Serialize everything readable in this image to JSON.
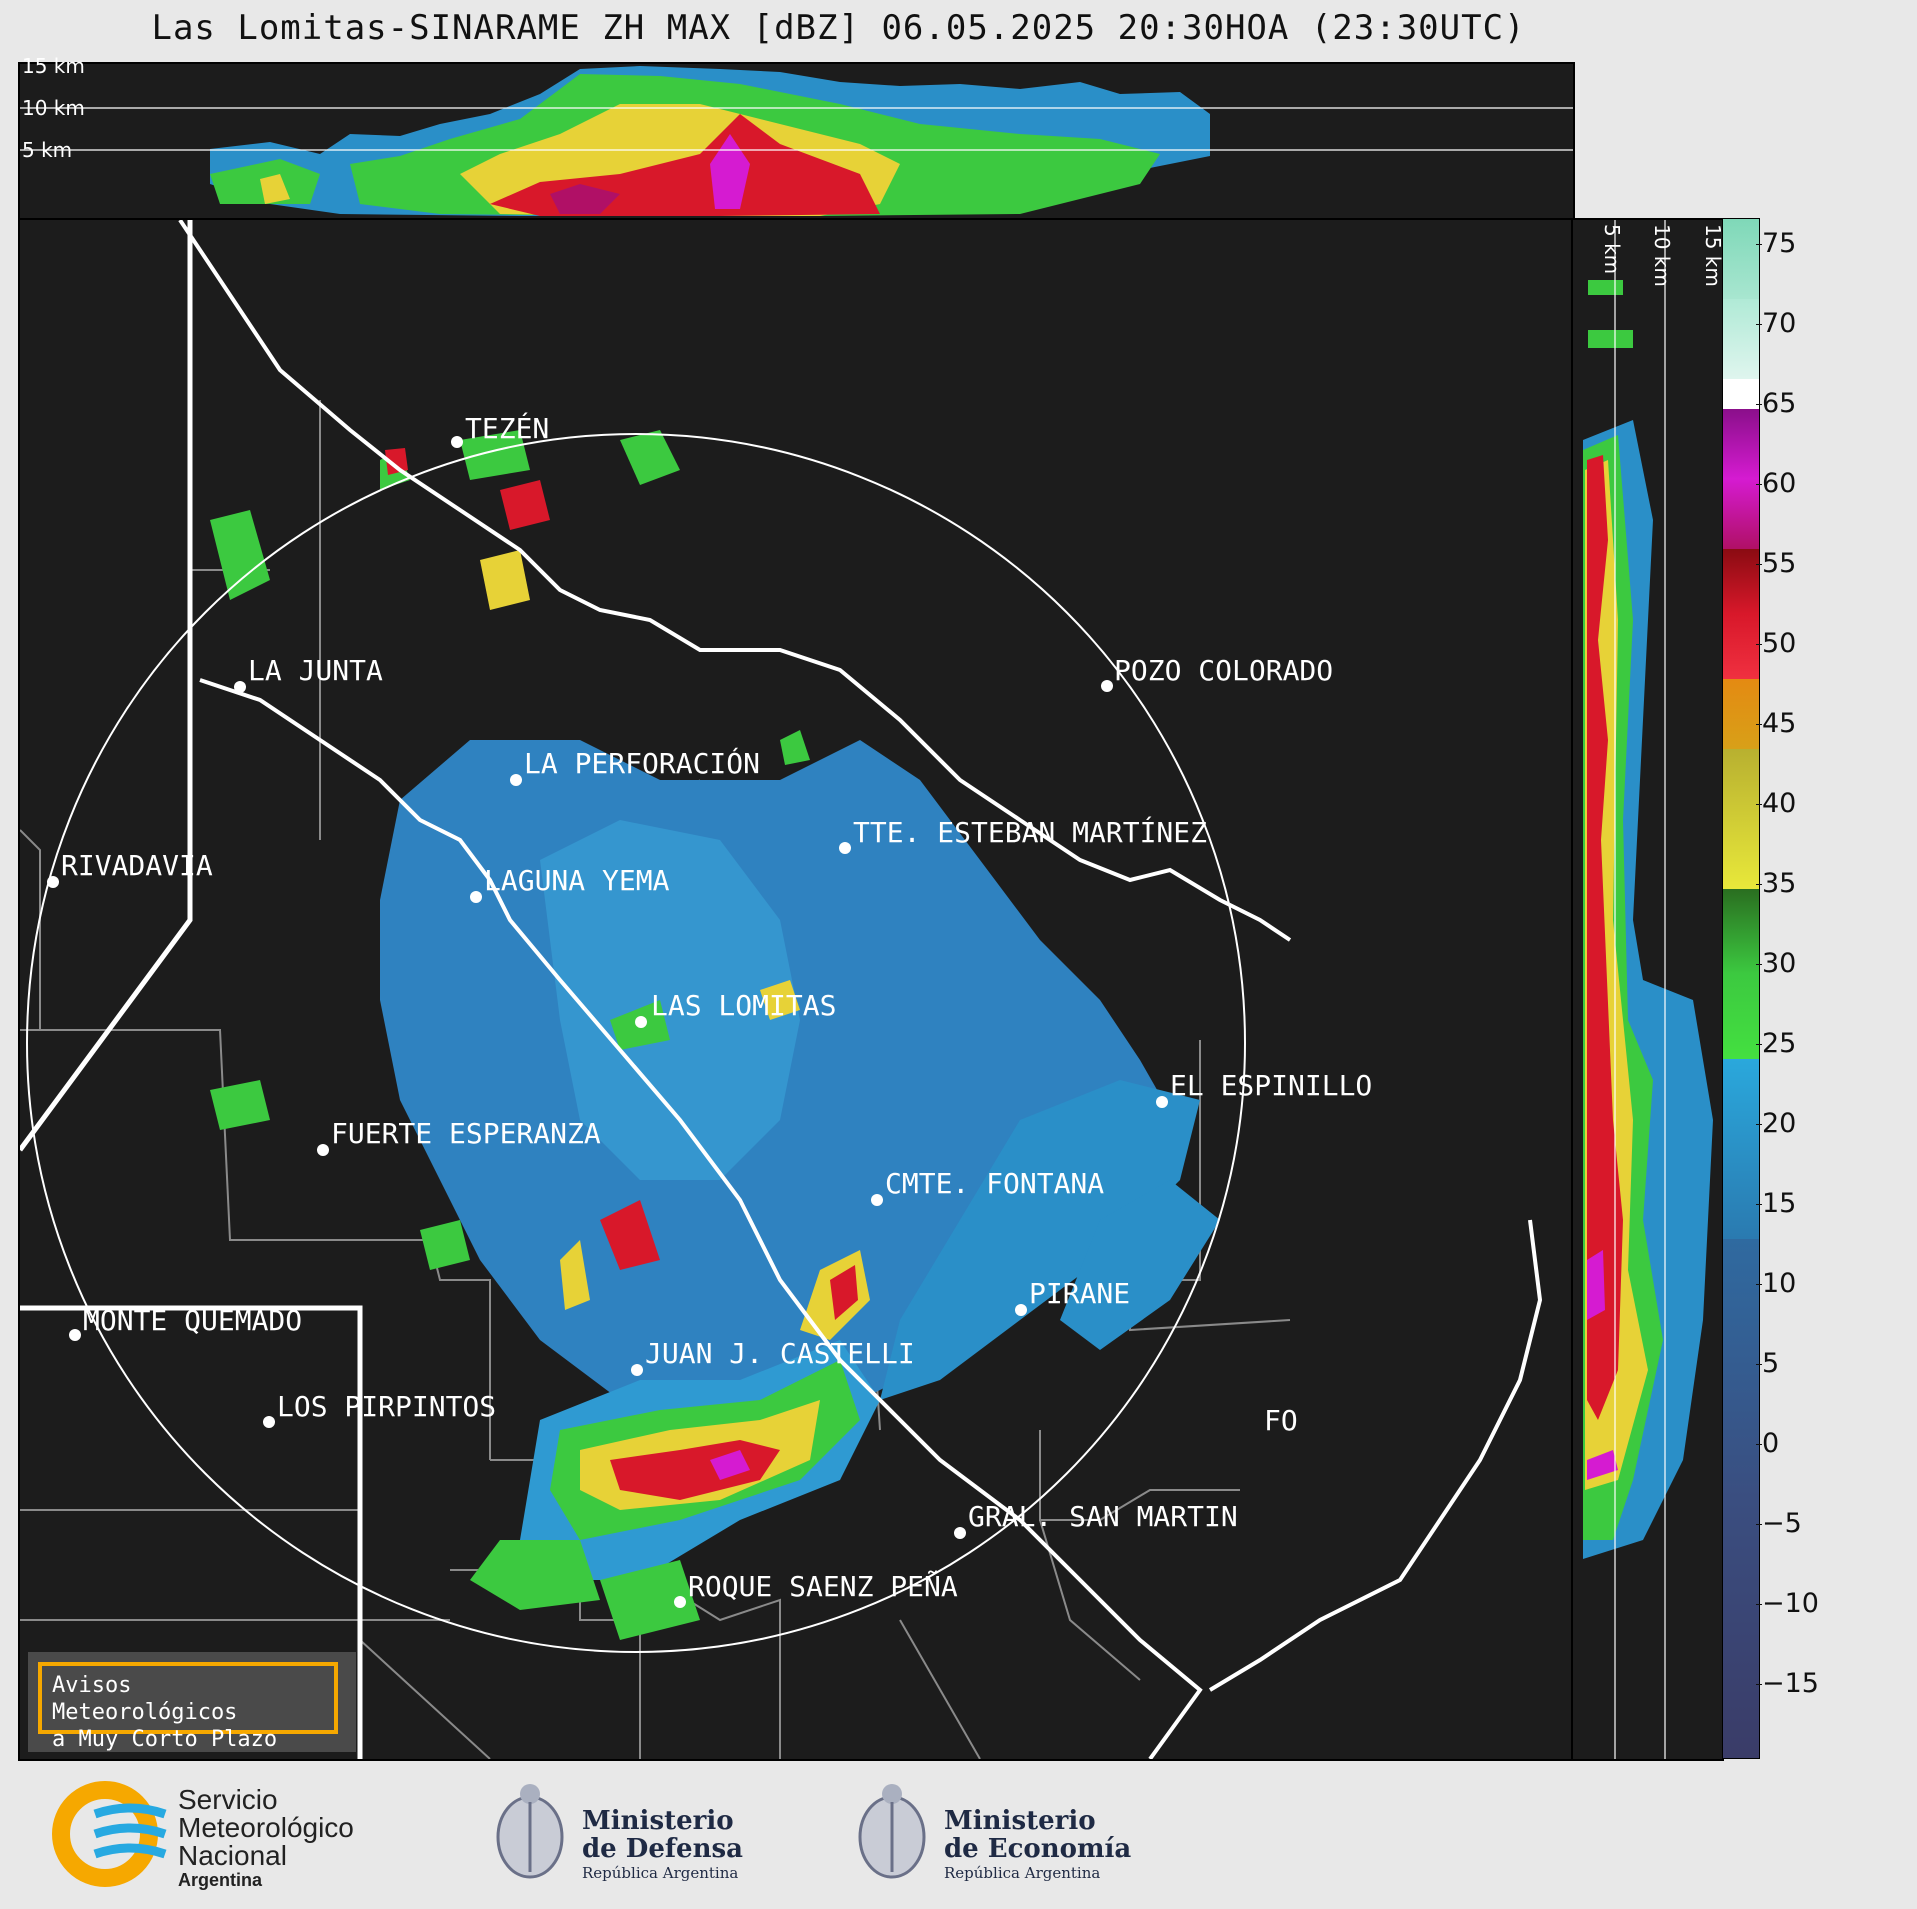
{
  "title": "Las Lomitas-SINARAME ZH MAX [dBZ] 06.05.2025 20:30HOA (23:30UTC)",
  "altitude_labels": {
    "top": [
      "15 km",
      "10 km",
      "5 km"
    ],
    "right": [
      "5 km",
      "10 km",
      "15 km"
    ]
  },
  "colorbar": {
    "ticks": [
      "75",
      "70",
      "65",
      "60",
      "55",
      "50",
      "45",
      "40",
      "35",
      "30",
      "25",
      "20",
      "15",
      "10",
      "5",
      "0",
      "−5",
      "−10",
      "−15"
    ],
    "min": -20,
    "max": 77
  },
  "cities": [
    {
      "name": "TEZÉN"
    },
    {
      "name": "LA JUNTA"
    },
    {
      "name": "POZO COLORADO"
    },
    {
      "name": "LA PERFORACIÓN"
    },
    {
      "name": "TTE. ESTEBAN MARTÍNEZ"
    },
    {
      "name": "RIVADAVIA"
    },
    {
      "name": "LAGUNA YEMA"
    },
    {
      "name": "LAS LOMITAS"
    },
    {
      "name": "EL ESPINILLO"
    },
    {
      "name": "FUERTE ESPERANZA"
    },
    {
      "name": "CMTE. FONTANA"
    },
    {
      "name": "PIRANE"
    },
    {
      "name": "MONTE QUEMADO"
    },
    {
      "name": "JUAN J. CASTELLI"
    },
    {
      "name": "LOS PIRPINTOS"
    },
    {
      "name": "GRAL. SAN MARTIN"
    },
    {
      "name": "ROQUE SAENZ PEÑA"
    },
    {
      "name": "FO"
    }
  ],
  "notice": {
    "line1": "Avisos Meteorológicos",
    "line2": "a Muy Corto Plazo"
  },
  "logos": {
    "smn": {
      "line1": "Servicio",
      "line2": "Meteorológico",
      "line3": "Nacional",
      "line4": "Argentina"
    },
    "defensa": {
      "line1": "Ministerio",
      "line2": "de Defensa",
      "line3": "República Argentina"
    },
    "economia": {
      "line1": "Ministerio",
      "line2": "de Economía",
      "line3": "República Argentina"
    }
  }
}
